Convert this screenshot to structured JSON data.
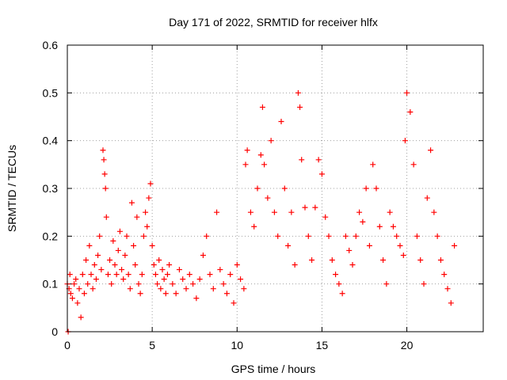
{
  "chart_data": {
    "type": "scatter",
    "title": "Day 171 of 2022, SRMTID for receiver hlfx",
    "xlabel": "GPS time / hours",
    "ylabel": "SRMTID / TECUs",
    "xlim": [
      0,
      24.5
    ],
    "ylim": [
      0,
      0.6
    ],
    "xticks": [
      0,
      5,
      10,
      15,
      20
    ],
    "xtick_labels": [
      "0",
      "5",
      "10",
      "15",
      "20"
    ],
    "yticks": [
      0,
      0.1,
      0.2,
      0.3,
      0.4,
      0.5,
      0.6
    ],
    "ytick_labels": [
      "0",
      "0.1",
      "0.2",
      "0.3",
      "0.4",
      "0.5",
      "0.6"
    ],
    "grid": true,
    "marker": "+",
    "color": "#ff0000",
    "series": [
      {
        "name": "SRMTID",
        "x": [
          0.0,
          0.05,
          0.1,
          0.15,
          0.2,
          0.3,
          0.4,
          0.5,
          0.6,
          0.7,
          0.8,
          0.9,
          1.0,
          1.1,
          1.2,
          1.3,
          1.4,
          1.5,
          1.6,
          1.7,
          1.8,
          1.9,
          2.0,
          2.1,
          2.15,
          2.2,
          2.25,
          2.3,
          2.4,
          2.5,
          2.6,
          2.7,
          2.8,
          2.9,
          3.0,
          3.1,
          3.2,
          3.3,
          3.4,
          3.5,
          3.6,
          3.7,
          3.8,
          3.9,
          4.0,
          4.1,
          4.2,
          4.3,
          4.4,
          4.5,
          4.6,
          4.7,
          4.8,
          4.9,
          5.0,
          5.1,
          5.2,
          5.3,
          5.4,
          5.5,
          5.6,
          5.7,
          5.8,
          5.9,
          6.0,
          6.2,
          6.4,
          6.6,
          6.8,
          7.0,
          7.2,
          7.4,
          7.6,
          7.8,
          8.0,
          8.2,
          8.4,
          8.6,
          8.8,
          9.0,
          9.2,
          9.4,
          9.6,
          9.8,
          10.0,
          10.2,
          10.4,
          10.5,
          10.6,
          10.8,
          11.0,
          11.2,
          11.4,
          11.5,
          11.6,
          11.8,
          12.0,
          12.2,
          12.4,
          12.6,
          12.8,
          13.0,
          13.2,
          13.4,
          13.6,
          13.7,
          13.8,
          14.0,
          14.2,
          14.4,
          14.6,
          14.8,
          15.0,
          15.2,
          15.4,
          15.6,
          15.8,
          16.0,
          16.2,
          16.4,
          16.6,
          16.8,
          17.0,
          17.2,
          17.4,
          17.6,
          17.8,
          18.0,
          18.2,
          18.4,
          18.6,
          18.8,
          19.0,
          19.2,
          19.4,
          19.6,
          19.8,
          19.9,
          20.0,
          20.2,
          20.4,
          20.6,
          20.8,
          21.0,
          21.2,
          21.4,
          21.6,
          21.8,
          22.0,
          22.2,
          22.4,
          22.6,
          22.8
        ],
        "y": [
          0.1,
          0.0,
          0.09,
          0.12,
          0.08,
          0.07,
          0.1,
          0.11,
          0.06,
          0.09,
          0.03,
          0.12,
          0.08,
          0.15,
          0.1,
          0.18,
          0.12,
          0.09,
          0.14,
          0.11,
          0.16,
          0.2,
          0.13,
          0.38,
          0.36,
          0.33,
          0.3,
          0.24,
          0.12,
          0.15,
          0.1,
          0.19,
          0.14,
          0.12,
          0.17,
          0.21,
          0.13,
          0.11,
          0.16,
          0.2,
          0.12,
          0.09,
          0.27,
          0.18,
          0.14,
          0.24,
          0.1,
          0.08,
          0.12,
          0.2,
          0.25,
          0.22,
          0.28,
          0.31,
          0.18,
          0.14,
          0.12,
          0.1,
          0.15,
          0.09,
          0.13,
          0.11,
          0.08,
          0.12,
          0.14,
          0.1,
          0.08,
          0.13,
          0.11,
          0.09,
          0.12,
          0.1,
          0.07,
          0.11,
          0.16,
          0.2,
          0.12,
          0.09,
          0.25,
          0.13,
          0.1,
          0.08,
          0.12,
          0.06,
          0.14,
          0.11,
          0.09,
          0.35,
          0.38,
          0.25,
          0.22,
          0.3,
          0.37,
          0.47,
          0.35,
          0.28,
          0.4,
          0.25,
          0.2,
          0.44,
          0.3,
          0.18,
          0.25,
          0.14,
          0.5,
          0.47,
          0.36,
          0.26,
          0.2,
          0.15,
          0.26,
          0.36,
          0.33,
          0.24,
          0.2,
          0.15,
          0.12,
          0.1,
          0.08,
          0.2,
          0.17,
          0.14,
          0.2,
          0.25,
          0.23,
          0.3,
          0.18,
          0.35,
          0.3,
          0.22,
          0.15,
          0.1,
          0.25,
          0.22,
          0.2,
          0.18,
          0.16,
          0.4,
          0.5,
          0.46,
          0.35,
          0.2,
          0.15,
          0.1,
          0.28,
          0.38,
          0.25,
          0.2,
          0.15,
          0.12,
          0.09,
          0.06,
          0.18
        ]
      }
    ]
  }
}
